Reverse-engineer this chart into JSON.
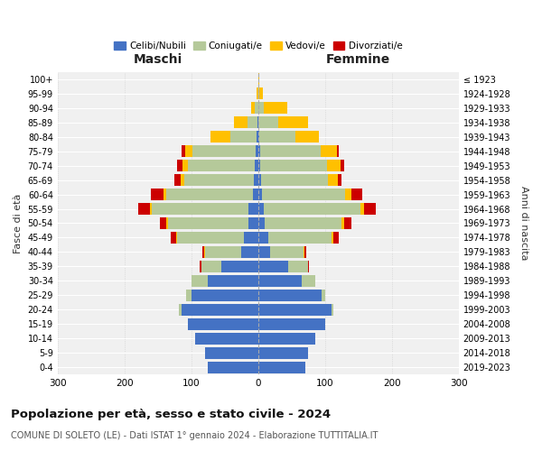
{
  "age_groups": [
    "0-4",
    "5-9",
    "10-14",
    "15-19",
    "20-24",
    "25-29",
    "30-34",
    "35-39",
    "40-44",
    "45-49",
    "50-54",
    "55-59",
    "60-64",
    "65-69",
    "70-74",
    "75-79",
    "80-84",
    "85-89",
    "90-94",
    "95-99",
    "100+"
  ],
  "birth_years": [
    "2019-2023",
    "2014-2018",
    "2009-2013",
    "2004-2008",
    "1999-2003",
    "1994-1998",
    "1989-1993",
    "1984-1988",
    "1979-1983",
    "1974-1978",
    "1969-1973",
    "1964-1968",
    "1959-1963",
    "1954-1958",
    "1949-1953",
    "1944-1948",
    "1939-1943",
    "1934-1938",
    "1929-1933",
    "1924-1928",
    "≤ 1923"
  ],
  "colors": {
    "celibe": "#4472c4",
    "coniugato": "#b5c99a",
    "vedovo": "#ffc000",
    "divorziato": "#cc0000"
  },
  "male": {
    "celibe": [
      75,
      80,
      95,
      105,
      115,
      100,
      75,
      55,
      25,
      22,
      15,
      14,
      8,
      6,
      5,
      4,
      2,
      1,
      0,
      0,
      0
    ],
    "coniugato": [
      0,
      0,
      0,
      0,
      3,
      8,
      25,
      30,
      55,
      100,
      120,
      145,
      130,
      105,
      100,
      95,
      40,
      15,
      5,
      0,
      0
    ],
    "vedovo": [
      0,
      0,
      0,
      0,
      0,
      0,
      0,
      0,
      1,
      1,
      2,
      3,
      4,
      5,
      8,
      10,
      30,
      20,
      5,
      2,
      0
    ],
    "divorziato": [
      0,
      0,
      0,
      0,
      0,
      0,
      0,
      2,
      3,
      8,
      10,
      18,
      18,
      10,
      8,
      5,
      0,
      0,
      0,
      0,
      0
    ]
  },
  "female": {
    "nubile": [
      70,
      75,
      85,
      100,
      110,
      95,
      65,
      45,
      18,
      15,
      10,
      8,
      5,
      4,
      3,
      3,
      1,
      0,
      0,
      0,
      0
    ],
    "coniugata": [
      0,
      0,
      0,
      0,
      2,
      5,
      20,
      30,
      50,
      95,
      115,
      145,
      125,
      100,
      100,
      90,
      55,
      30,
      8,
      2,
      0
    ],
    "vedova": [
      0,
      0,
      0,
      0,
      0,
      0,
      0,
      0,
      1,
      2,
      4,
      5,
      10,
      15,
      20,
      25,
      35,
      45,
      35,
      5,
      1
    ],
    "divorziata": [
      0,
      0,
      0,
      0,
      0,
      0,
      0,
      1,
      3,
      8,
      10,
      18,
      15,
      5,
      5,
      3,
      0,
      0,
      0,
      0,
      0
    ]
  },
  "title": "Popolazione per età, sesso e stato civile - 2024",
  "subtitle": "COMUNE DI SOLETO (LE) - Dati ISTAT 1° gennaio 2024 - Elaborazione TUTTITALIA.IT",
  "xlabel_left": "Maschi",
  "xlabel_right": "Femmine",
  "ylabel_left": "Fasce di età",
  "ylabel_right": "Anni di nascita",
  "xlim": 300,
  "legend_labels": [
    "Celibi/Nubili",
    "Coniugati/e",
    "Vedovi/e",
    "Divorziati/e"
  ],
  "background_color": "#ffffff",
  "grid_color": "#cccccc"
}
